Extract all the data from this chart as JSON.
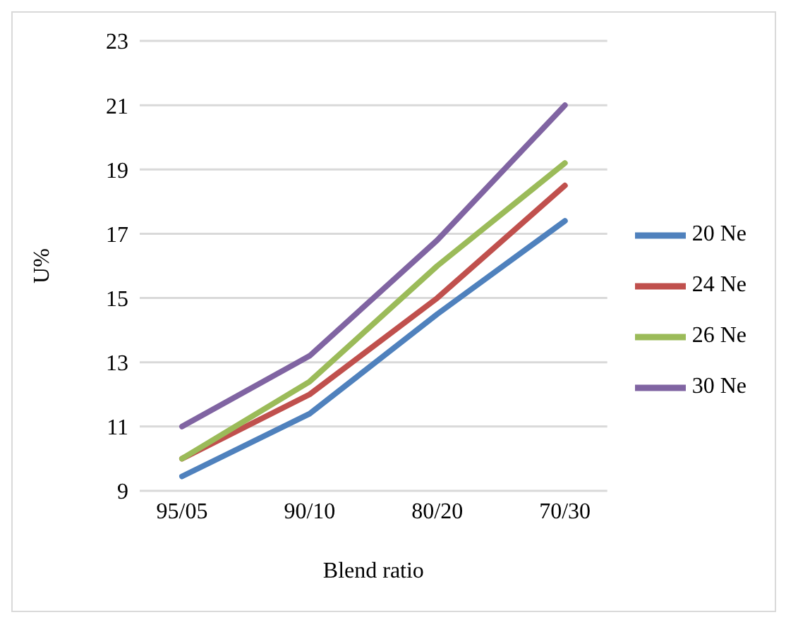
{
  "chart_data": {
    "type": "line",
    "xlabel": "Blend ratio",
    "ylabel": "U%",
    "categories": [
      "95/05",
      "90/10",
      "80/20",
      "70/30"
    ],
    "series": [
      {
        "name": "20 Ne",
        "color": "#4f81bd",
        "values": [
          9.45,
          11.4,
          14.5,
          17.4
        ]
      },
      {
        "name": "24 Ne",
        "color": "#c0504d",
        "values": [
          10.0,
          12.0,
          15.0,
          18.5
        ]
      },
      {
        "name": "26 Ne",
        "color": "#9bbb59",
        "values": [
          10.0,
          12.4,
          16.0,
          19.2
        ]
      },
      {
        "name": "30 Ne",
        "color": "#8064a2",
        "values": [
          11.0,
          13.2,
          16.8,
          21.0
        ]
      }
    ],
    "ylim": [
      9,
      23
    ],
    "yticks": [
      9,
      11,
      13,
      15,
      17,
      19,
      21,
      23
    ],
    "grid": "y",
    "legend": "right",
    "marker": "none",
    "line_style": "solid"
  }
}
